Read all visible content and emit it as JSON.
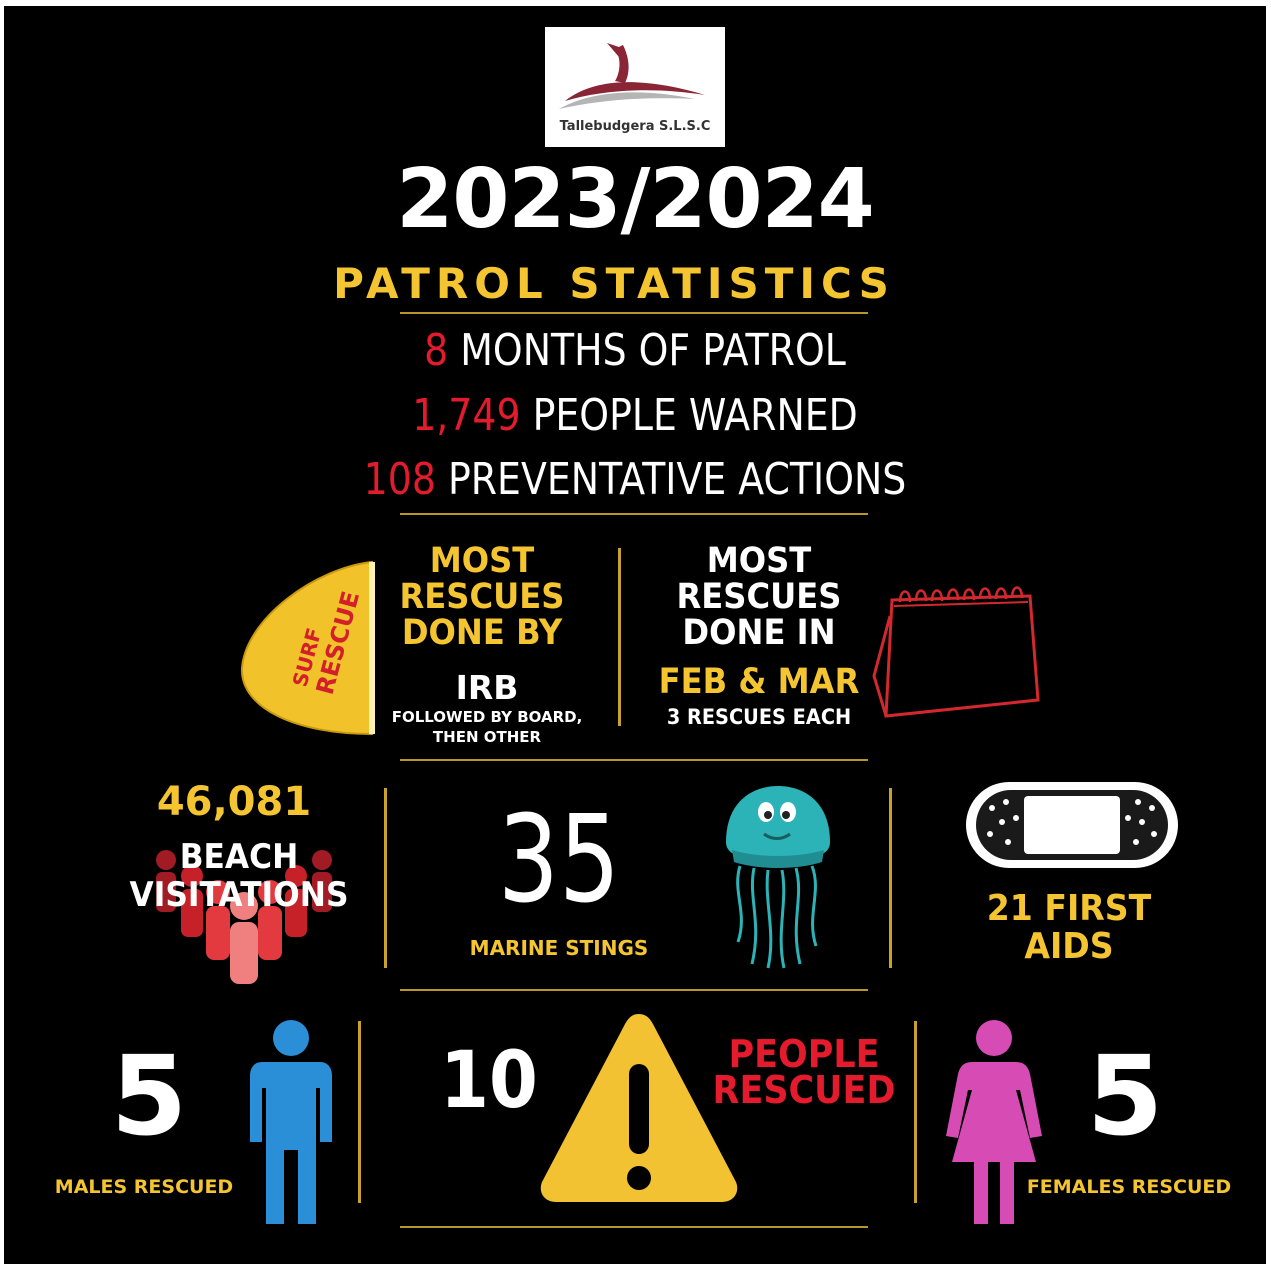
{
  "logo": {
    "text": "Tallebudgera S.L.S.C"
  },
  "header": {
    "year": "2023/2024",
    "subtitle": "PATROL STATISTICS"
  },
  "stats": [
    {
      "value": "8",
      "label": "MONTHS OF PATROL"
    },
    {
      "value": "1,749",
      "label": "PEOPLE WARNED"
    },
    {
      "value": "108",
      "label": "PREVENTATIVE ACTIONS"
    }
  ],
  "most_by": {
    "line1": "MOST",
    "line2": "RESCUES",
    "line3": "DONE BY",
    "value": "IRB",
    "note1": "FOLLOWED BY BOARD,",
    "note2": "THEN OTHER",
    "board_text1": "SURF",
    "board_text2": "RESCUE"
  },
  "most_in": {
    "line1": "MOST",
    "line2": "RESCUES",
    "line3": "DONE IN",
    "value": "FEB & MAR",
    "note": "3 RESCUES EACH"
  },
  "beach": {
    "value": "46,081",
    "label1": "BEACH",
    "label2": "VISITATIONS"
  },
  "stings": {
    "value": "35",
    "label": "MARINE STINGS"
  },
  "first_aid": {
    "line1": "21 FIRST",
    "line2": "AIDS"
  },
  "males": {
    "value": "5",
    "label": "MALES RESCUED"
  },
  "rescued": {
    "value": "10",
    "label1": "PEOPLE",
    "label2": "RESCUED"
  },
  "females": {
    "value": "5",
    "label": "FEMALES RESCUED"
  },
  "colors": {
    "yellow": "#f4c531",
    "red": "#e31b2c",
    "blue": "#2a8fd6",
    "pink": "#d64bb4",
    "background": "#000000"
  }
}
